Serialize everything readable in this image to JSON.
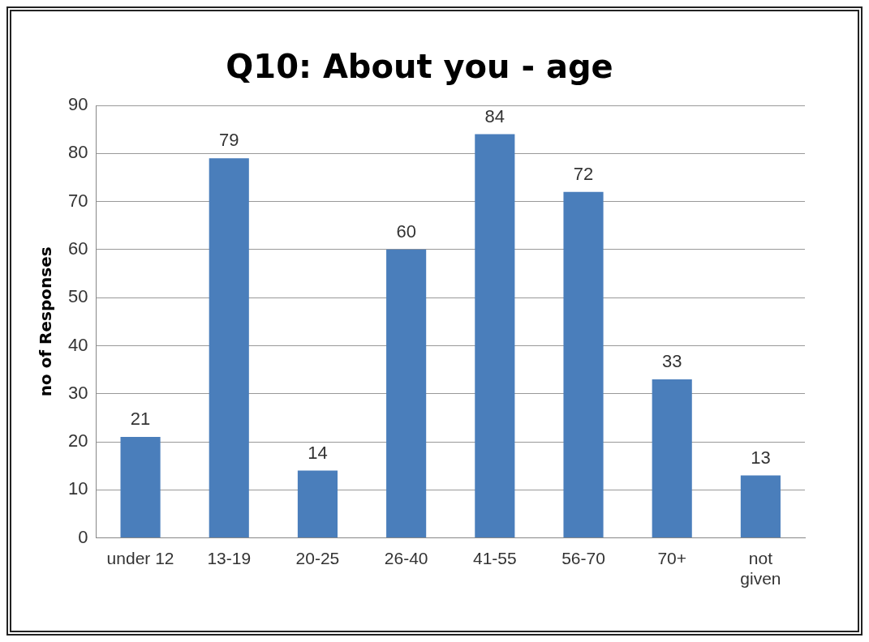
{
  "chart_data": {
    "type": "bar",
    "title": "Q10: About you - age",
    "ylabel": "no of Responses",
    "categories": [
      "under 12",
      "13-19",
      "20-25",
      "26-40",
      "41-55",
      "56-70",
      "70+",
      "not given"
    ],
    "values": [
      21,
      79,
      14,
      60,
      84,
      72,
      33,
      13
    ],
    "color": "#4a7ebb",
    "ylim": [
      0,
      90
    ],
    "yticks": [
      0,
      10,
      20,
      30,
      40,
      50,
      60,
      70,
      80,
      90
    ],
    "grid": "y",
    "legend": false,
    "data_labels": true
  }
}
